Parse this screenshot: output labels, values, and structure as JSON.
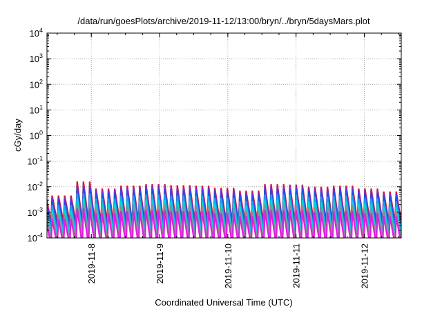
{
  "chart_data": {
    "type": "line",
    "title": "/data/run/goesPlots/archive/2019-11-12/13:00/bryn/../bryn/5daysMars.plot",
    "xlabel": "Coordinated Universal Time (UTC)",
    "ylabel": "cGy/day",
    "yscale": "log",
    "ylim": [
      0.0001,
      10000
    ],
    "y_ticks": [
      {
        "value": 10000,
        "base": "10",
        "exp": "4"
      },
      {
        "value": 1000,
        "base": "10",
        "exp": "3"
      },
      {
        "value": 100,
        "base": "10",
        "exp": "2"
      },
      {
        "value": 10,
        "base": "10",
        "exp": "1"
      },
      {
        "value": 1,
        "base": "10",
        "exp": "0"
      },
      {
        "value": 0.1,
        "base": "10",
        "exp": "-1"
      },
      {
        "value": 0.01,
        "base": "10",
        "exp": "-2"
      },
      {
        "value": 0.001,
        "base": "10",
        "exp": "-3"
      },
      {
        "value": 0.0001,
        "base": "10",
        "exp": "-4"
      }
    ],
    "xlim": [
      "2019-11-07 08:24",
      "2019-11-12 13:00"
    ],
    "x_ticks": [
      "2019-11-8",
      "2019-11-9",
      "2019-11-10",
      "2019-11-11",
      "2019-11-12"
    ],
    "x_tick_values": [
      "2019-11-08 00:00",
      "2019-11-09 00:00",
      "2019-11-10 00:00",
      "2019-11-11 00:00",
      "2019-11-12 00:00"
    ],
    "grid": true,
    "legend": "none",
    "pattern": "sawtooth",
    "sawtooth_period_hours": 2.2,
    "series": [
      {
        "color": "#e8141c",
        "peak": [
          0.0045,
          0.016,
          0.0085,
          0.011,
          0.0125,
          0.0115,
          0.011,
          0.009,
          0.007,
          0.0125,
          0.012,
          0.01,
          0.011,
          0.0085,
          0.0065
        ],
        "trough": 0.0004
      },
      {
        "color": "#7a2ad0",
        "peak": [
          0.0038,
          0.012,
          0.0072,
          0.0095,
          0.0105,
          0.0095,
          0.0092,
          0.0075,
          0.0058,
          0.0105,
          0.0102,
          0.0085,
          0.0095,
          0.0072,
          0.0055
        ],
        "trough": 0.0003
      },
      {
        "color": "#1f4fe6",
        "peak": [
          0.0028,
          0.009,
          0.0055,
          0.0072,
          0.008,
          0.0072,
          0.007,
          0.0057,
          0.0044,
          0.008,
          0.0078,
          0.0065,
          0.0072,
          0.0055,
          0.0042
        ],
        "trough": 0.0002
      },
      {
        "color": "#1aa2e8",
        "peak": [
          0.0019,
          0.0055,
          0.0035,
          0.0045,
          0.005,
          0.0045,
          0.0044,
          0.0036,
          0.0028,
          0.005,
          0.0049,
          0.0041,
          0.0045,
          0.0035,
          0.0027
        ],
        "trough": 0.00016
      },
      {
        "color": "#00d8d0",
        "peak": [
          0.0012,
          0.0035,
          0.0022,
          0.0028,
          0.0031,
          0.0028,
          0.0027,
          0.0022,
          0.0018,
          0.0031,
          0.003,
          0.0025,
          0.0028,
          0.0022,
          0.0017
        ],
        "trough": 0.00012
      },
      {
        "color": "#8f8f8f",
        "peak": [
          0.0008,
          0.0022,
          0.0014,
          0.0018,
          0.002,
          0.0018,
          0.0017,
          0.0014,
          0.0011,
          0.002,
          0.0019,
          0.0016,
          0.0018,
          0.0014,
          0.0011
        ],
        "trough": 8e-05
      },
      {
        "color": "#e01ee0",
        "peak": [
          0.00055,
          0.0014,
          0.0009,
          0.0011,
          0.0012,
          0.0011,
          0.0011,
          0.0009,
          0.0007,
          0.0012,
          0.0012,
          0.001,
          0.0011,
          0.0009,
          0.0007
        ],
        "trough": 5e-05
      }
    ]
  }
}
